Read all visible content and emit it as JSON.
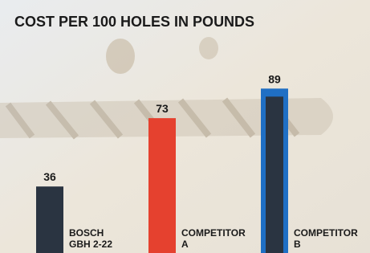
{
  "chart_data": {
    "type": "bar",
    "title": "COST PER 100 HOLES IN POUNDS",
    "categories": [
      [
        "BOSCH",
        "GBH 2-22"
      ],
      [
        "COMPETITOR",
        "A"
      ],
      [
        "COMPETITOR",
        "B"
      ]
    ],
    "values": [
      36,
      73,
      89
    ],
    "colors": [
      "#2a3441",
      "#e5412f",
      "#1f6fc4"
    ]
  }
}
